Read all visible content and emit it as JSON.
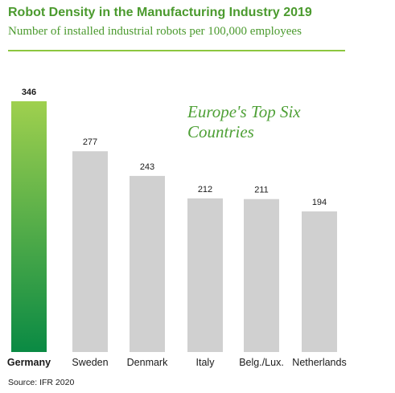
{
  "colors": {
    "title": "#4b9a2e",
    "rule": "#8cc63f",
    "bar_default": "#d0d0d0",
    "bar_highlight_top": "#9fd04e",
    "bar_highlight_bottom": "#0a8a44",
    "label": "#1a1a1a"
  },
  "chart_data": {
    "type": "bar",
    "title": "Robot Density in the Manufacturing Industry 2019",
    "subtitle": "Number of installed industrial robots per 100,000 employees",
    "annotation": [
      "Europe's Top Six",
      "Countries"
    ],
    "categories": [
      "Germany",
      "Sweden",
      "Denmark",
      "Italy",
      "Belg./Lux.",
      "Netherlands"
    ],
    "values": [
      346,
      277,
      243,
      212,
      211,
      194
    ],
    "highlight_index": 0,
    "xlabel": "",
    "ylabel": "",
    "ylim": [
      0,
      346
    ],
    "grid": false,
    "data_labels": true
  },
  "footer": {
    "source": "Source: IFR 2020"
  }
}
